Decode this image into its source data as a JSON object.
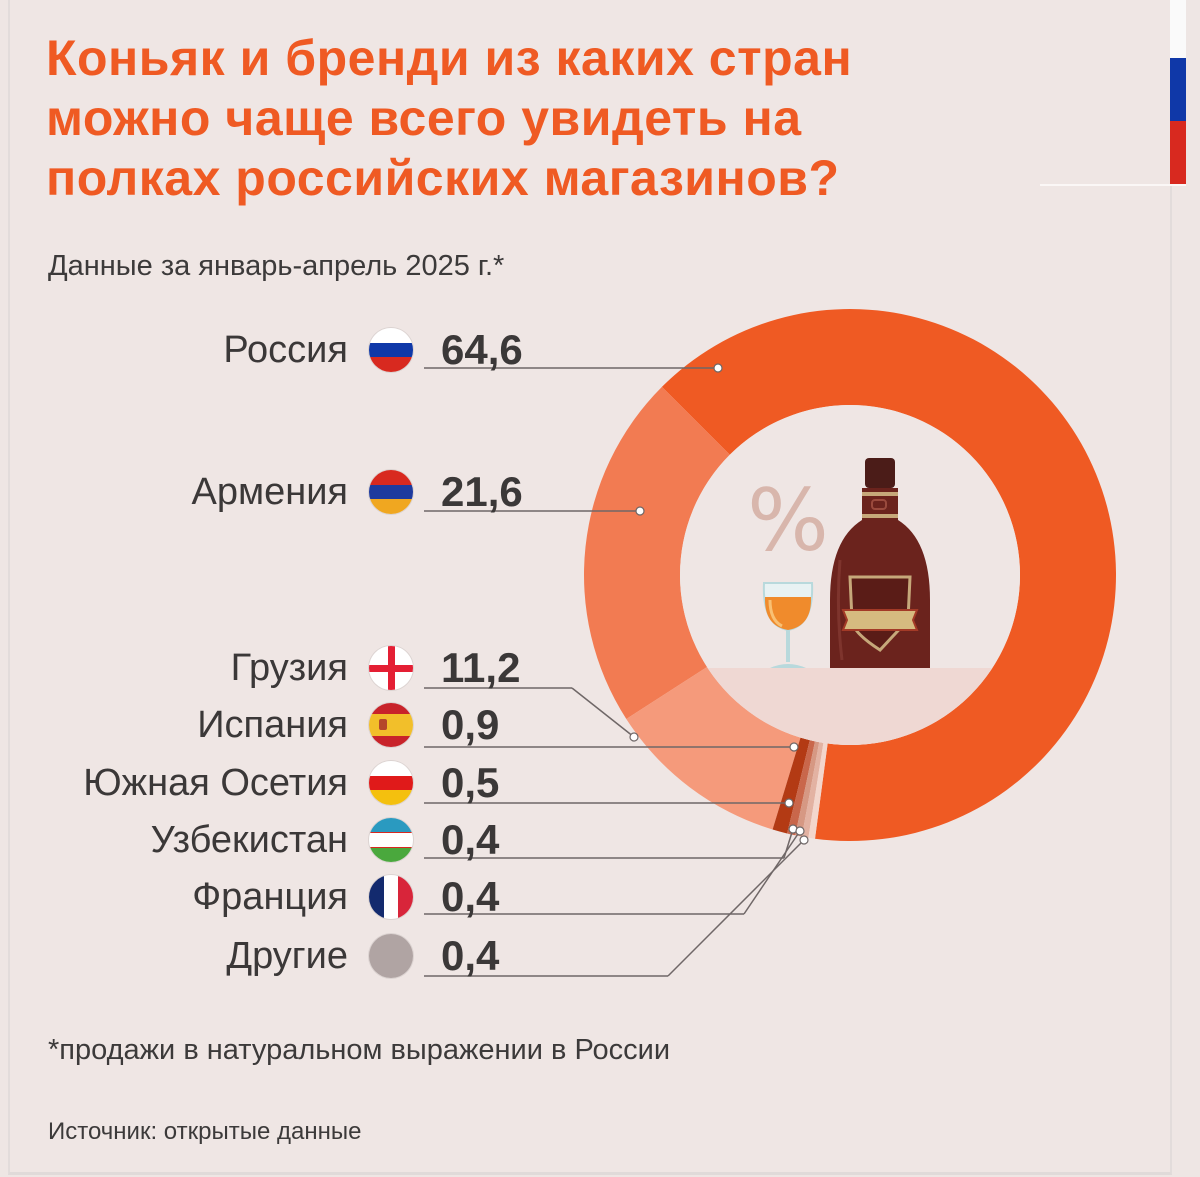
{
  "title": "Коньяк и бренди из каких стран можно чаще всего увидеть на полках российских магазинов?",
  "title_lines": [
    "Коньяк и бренди из каких стран",
    "можно чаще всего увидеть на",
    "полках российских магазинов?"
  ],
  "subtitle": "Данные за январь-апрель 2025 г.*",
  "footnote": "*продажи в натуральном выражении в России",
  "source": "Источник: открытые данные",
  "center_icon": "percent-bottle-glass-illustration",
  "center_symbol": "%",
  "colors": {
    "title": "#ef5a23",
    "background": "#efe6e4",
    "russia": "#ef5a23",
    "armenia": "#f27b52",
    "georgia": "#f59a7b",
    "spain": "#b33a14",
    "south_ossetia": "#c9674b",
    "uzbekistan": "#d69883",
    "france": "#e3b2a2",
    "others": "#f3d6cc"
  },
  "rows": [
    {
      "label": "Россия",
      "value": "64,6",
      "flag": "russia-flag-icon"
    },
    {
      "label": "Армения",
      "value": "21,6",
      "flag": "armenia-flag-icon"
    },
    {
      "label": "Грузия",
      "value": "11,2",
      "flag": "georgia-flag-icon"
    },
    {
      "label": "Испания",
      "value": "0,9",
      "flag": "spain-flag-icon"
    },
    {
      "label": "Южная Осетия",
      "value": "0,5",
      "flag": "south-ossetia-flag-icon"
    },
    {
      "label": "Узбекистан",
      "value": "0,4",
      "flag": "uzbekistan-flag-icon"
    },
    {
      "label": "Франция",
      "value": "0,4",
      "flag": "france-flag-icon"
    },
    {
      "label": "Другие",
      "value": "0,4",
      "flag": "others-circle-icon"
    }
  ],
  "chart_data": {
    "type": "pie",
    "subtype": "donut",
    "title": "Коньяк и бренди из каких стран можно чаще всего увидеть на полках российских магазинов?",
    "subtitle": "Данные за январь-апрель 2025 г.*",
    "unit": "%",
    "categories": [
      "Россия",
      "Армения",
      "Грузия",
      "Испания",
      "Южная Осетия",
      "Узбекистан",
      "Франция",
      "Другие"
    ],
    "values": [
      64.6,
      21.6,
      11.2,
      0.9,
      0.5,
      0.4,
      0.4,
      0.4
    ],
    "note": "*продажи в натуральном выражении в России",
    "source": "Источник: открытые данные",
    "legend_position": "left"
  }
}
